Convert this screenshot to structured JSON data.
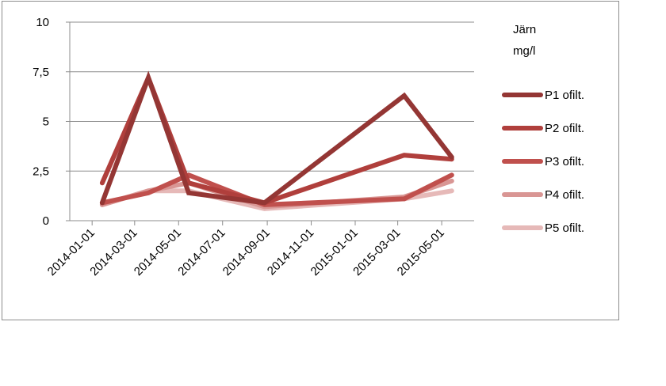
{
  "chart_data": {
    "type": "line",
    "title": "",
    "xlabel": "",
    "ylabel": "",
    "legend_title_line1": "Järn",
    "legend_title_line2": "mg/l",
    "legend_position": "right",
    "grid": "horizontal",
    "ylim": [
      0,
      10
    ],
    "y_ticks": [
      {
        "value": 0,
        "label": "0"
      },
      {
        "value": 2.5,
        "label": "2,5"
      },
      {
        "value": 5,
        "label": "5"
      },
      {
        "value": 7.5,
        "label": "7,5"
      },
      {
        "value": 10,
        "label": "10"
      }
    ],
    "xlim": [
      "2013-12-01",
      "2015-06-15"
    ],
    "x_ticks": [
      "2014-01-01",
      "2014-03-01",
      "2014-05-01",
      "2014-07-01",
      "2014-09-01",
      "2014-11-01",
      "2015-01-01",
      "2015-03-01",
      "2015-05-01"
    ],
    "series": [
      {
        "name": "P1 ofilt.",
        "color": "#943634",
        "points": [
          [
            "2014-01-15",
            0.9
          ],
          [
            "2014-03-20",
            7.2
          ],
          [
            "2014-05-15",
            1.4
          ],
          [
            "2014-08-28",
            0.9
          ],
          [
            "2015-03-10",
            6.3
          ],
          [
            "2015-05-15",
            3.2
          ]
        ]
      },
      {
        "name": "P2 ofilt.",
        "color": "#b03f3c",
        "points": [
          [
            "2014-01-15",
            1.9
          ],
          [
            "2014-03-20",
            7.2
          ],
          [
            "2014-05-15",
            1.9
          ],
          [
            "2014-08-28",
            0.9
          ],
          [
            "2015-03-10",
            3.3
          ],
          [
            "2015-05-15",
            3.1
          ]
        ]
      },
      {
        "name": "P3 ofilt.",
        "color": "#c0504d",
        "points": [
          [
            "2014-01-15",
            0.9
          ],
          [
            "2014-03-20",
            1.4
          ],
          [
            "2014-05-15",
            2.3
          ],
          [
            "2014-08-28",
            0.8
          ],
          [
            "2015-03-10",
            1.1
          ],
          [
            "2015-05-15",
            2.3
          ]
        ]
      },
      {
        "name": "P4 ofilt.",
        "color": "#d99694",
        "points": [
          [
            "2014-01-15",
            0.8
          ],
          [
            "2014-03-20",
            1.5
          ],
          [
            "2014-05-15",
            1.9
          ],
          [
            "2014-08-28",
            0.7
          ],
          [
            "2015-03-10",
            1.2
          ],
          [
            "2015-05-15",
            2.0
          ]
        ]
      },
      {
        "name": "P5 ofilt.",
        "color": "#e6b9b8",
        "points": [
          [
            "2014-01-15",
            0.8
          ],
          [
            "2014-03-20",
            1.5
          ],
          [
            "2014-05-15",
            1.5
          ],
          [
            "2014-08-28",
            0.6
          ],
          [
            "2015-03-10",
            1.1
          ],
          [
            "2015-05-15",
            1.5
          ]
        ]
      }
    ]
  }
}
